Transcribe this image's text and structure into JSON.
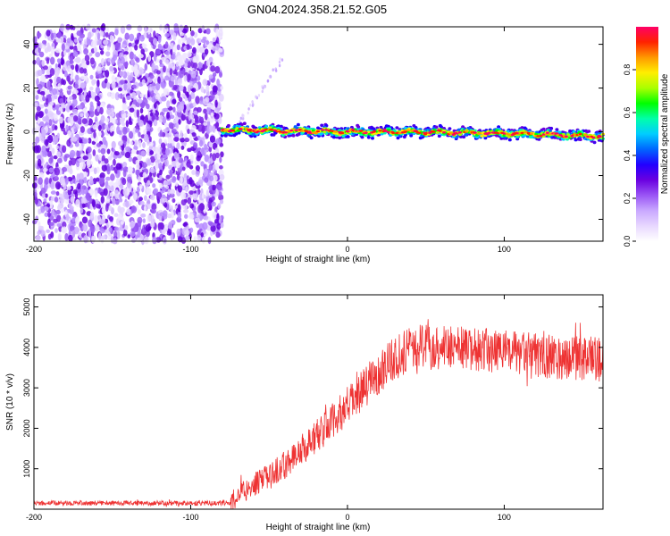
{
  "title": "GN04.2024.358.21.52.G05",
  "chart_data": [
    {
      "type": "heatmap",
      "xlabel": "Height of straight line (km)",
      "ylabel": "Frequency (Hz)",
      "xlim": [
        -200,
        163
      ],
      "ylim": [
        -50,
        48
      ],
      "xticks": [
        -200,
        -100,
        0,
        100
      ],
      "yticks": [
        -40,
        -20,
        0,
        20,
        40
      ],
      "colorbar": {
        "label": "Normalized spectral amplitude",
        "range": [
          0,
          1
        ],
        "ticks": [
          0.0,
          0.2,
          0.4,
          0.6,
          0.8
        ],
        "colors": [
          "#ffffff",
          "#e8d8ff",
          "#c9a8ff",
          "#9a55f5",
          "#6a00e0",
          "#2200ff",
          "#0066ff",
          "#00ccff",
          "#00ffaa",
          "#00ff00",
          "#aaff00",
          "#ffee00",
          "#ff9900",
          "#ff2200",
          "#ff0066"
        ]
      },
      "noise_region": {
        "x": [
          -200,
          -80
        ],
        "y": [
          -50,
          48
        ]
      },
      "signal_band": {
        "x": [
          -80,
          163
        ],
        "center_freq": [
          [
            -80,
            1
          ],
          [
            -40,
            0.5
          ],
          [
            0,
            0
          ],
          [
            40,
            0
          ],
          [
            80,
            -0.5
          ],
          [
            120,
            -1
          ],
          [
            163,
            -2
          ]
        ],
        "width_hz": 4
      },
      "side_streak": {
        "x": [
          -70,
          -40
        ],
        "y": [
          3,
          35
        ]
      }
    },
    {
      "type": "line",
      "xlabel": "Height of straight line (km)",
      "ylabel": "SNR (10 * v/v)",
      "xlim": [
        -200,
        163
      ],
      "ylim": [
        0,
        5300
      ],
      "xticks": [
        -200,
        -100,
        0,
        100
      ],
      "yticks": [
        1000,
        2000,
        3000,
        4000,
        5000
      ],
      "series": [
        {
          "color": "#ee3333",
          "trend": [
            [
              -200,
              150
            ],
            [
              -75,
              150
            ],
            [
              -70,
              350
            ],
            [
              -60,
              600
            ],
            [
              -50,
              800
            ],
            [
              -40,
              1100
            ],
            [
              -30,
              1450
            ],
            [
              -20,
              1800
            ],
            [
              -10,
              2150
            ],
            [
              0,
              2550
            ],
            [
              10,
              2950
            ],
            [
              20,
              3400
            ],
            [
              30,
              3750
            ],
            [
              40,
              3950
            ],
            [
              50,
              4050
            ],
            [
              60,
              4050
            ],
            [
              80,
              3950
            ],
            [
              100,
              3900
            ],
            [
              120,
              3800
            ],
            [
              140,
              3750
            ],
            [
              163,
              3700
            ]
          ]
        }
      ]
    }
  ]
}
